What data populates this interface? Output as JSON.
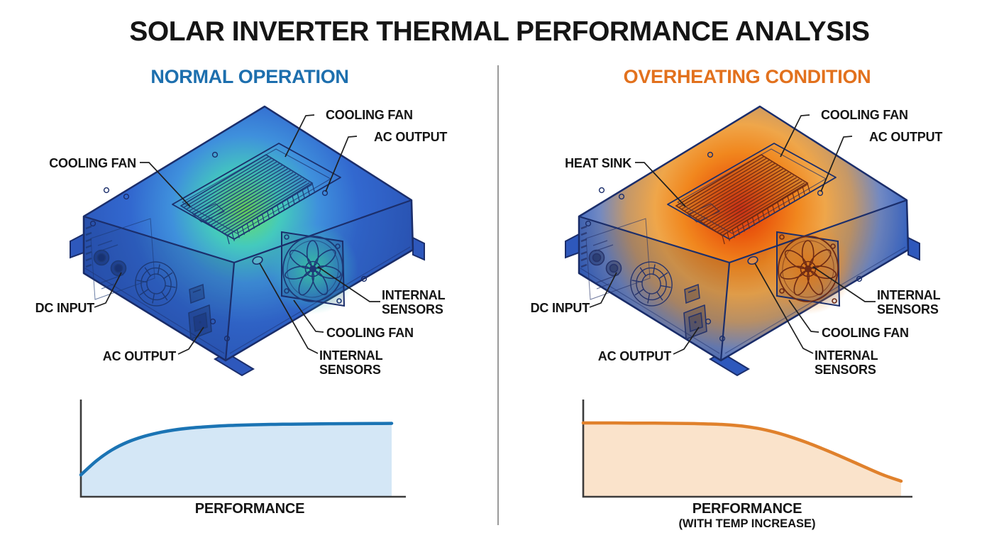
{
  "title": "SOLAR INVERTER THERMAL PERFORMANCE ANALYSIS",
  "divider_color": "#9a9a9a",
  "panels": {
    "normal": {
      "heading": "NORMAL OPERATION",
      "heading_color": "#1d6fae",
      "labels": {
        "cooling_fan_top": "COOLING FAN",
        "ac_output_top": "AC OUTPUT",
        "side_left": "COOLING FAN",
        "dc_input": "DC INPUT",
        "ac_output_bottom": "AC OUTPUT",
        "internal_sensors_right": "INTERNAL SENSORS",
        "cooling_fan_lower": "COOLING FAN",
        "internal_sensors_bottom": "INTERNAL SENSORS"
      },
      "thermal": {
        "state_note": "cool blue body with green heat signature at heat sink",
        "body_stops": [
          [
            "0",
            "#6ede5a"
          ],
          [
            "0.2",
            "#44cabd"
          ],
          [
            "0.4",
            "#3f90dc"
          ],
          [
            "0.62",
            "#3268cf"
          ],
          [
            "1",
            "#2b54b6"
          ]
        ],
        "fan_glow_stops": [
          [
            "0",
            "rgba(62,224,170,0.95)"
          ],
          [
            "0.55",
            "rgba(62,200,190,0.4)"
          ],
          [
            "1",
            "rgba(62,200,190,0)"
          ]
        ],
        "glow_radius": 260,
        "detail_stroke": "#1d3a77",
        "fin_stroke": "#1d3a77"
      }
    },
    "overheating": {
      "heading": "OVERHEATING CONDITION",
      "heading_color": "#e2711d",
      "labels": {
        "cooling_fan_top": "COOLING FAN",
        "ac_output_top": "AC OUTPUT",
        "side_left": "HEAT SINK",
        "dc_input": "DC INPUT",
        "ac_output_bottom": "AC OUTPUT",
        "internal_sensors_right": "INTERNAL SENSORS",
        "cooling_fan_lower": "COOLING FAN",
        "internal_sensors_bottom": "INTERNAL SENSORS"
      },
      "thermal": {
        "state_note": "red-hot heat sink core radiating orange into blue body",
        "body_stops": [
          [
            "0",
            "#dd3312"
          ],
          [
            "0.13",
            "#ea5a0e"
          ],
          [
            "0.27",
            "#f1871e"
          ],
          [
            "0.4",
            "#efa64a"
          ],
          [
            "0.53",
            "#c59868"
          ],
          [
            "0.66",
            "#7289c2"
          ],
          [
            "0.8",
            "#3a67c6"
          ],
          [
            "1",
            "#2b54b6"
          ]
        ],
        "fan_glow_stops": [
          [
            "0",
            "rgba(244,126,16,0.95)"
          ],
          [
            "0.55",
            "rgba(242,140,40,0.5)"
          ],
          [
            "1",
            "rgba(242,140,40,0)"
          ]
        ],
        "glow_radius": 300,
        "detail_stroke": "#27346b",
        "fin_stroke": "#6e2a14"
      }
    }
  },
  "chart_data": [
    {
      "type": "area",
      "caption": "PERFORMANCE",
      "series": [
        {
          "name": "normal_operation_performance",
          "values": [
            28,
            46,
            60,
            70,
            77,
            82,
            85.5,
            88,
            89.5,
            90.8,
            91.6,
            92.2,
            92.6,
            92.9,
            93.1,
            93.3,
            93.5,
            93.6,
            93.7,
            93.8,
            94
          ]
        }
      ],
      "x_range": [
        0,
        100
      ],
      "y_range": [
        0,
        100
      ],
      "axes": "plain L-axes, no ticks, no gridlines",
      "legend": false,
      "line_color": "#1b74b4",
      "fill_color": "#d4e7f6",
      "axis_color": "#3c3c3c"
    },
    {
      "type": "area",
      "caption": "PERFORMANCE",
      "caption_sub": "(WITH TEMP INCREASE)",
      "series": [
        {
          "name": "overheating_performance",
          "values": [
            94.5,
            94.5,
            94.5,
            94.4,
            94.3,
            94.2,
            94,
            93.7,
            93.2,
            92.3,
            90.5,
            87.5,
            83,
            77,
            70,
            62,
            53.5,
            44.5,
            35.5,
            27,
            20
          ]
        }
      ],
      "x_range": [
        0,
        100
      ],
      "y_range": [
        0,
        100
      ],
      "axes": "plain L-axes, no ticks, no gridlines",
      "legend": false,
      "line_color": "#e0812c",
      "fill_color": "#fae3cb",
      "axis_color": "#3c3c3c"
    }
  ]
}
